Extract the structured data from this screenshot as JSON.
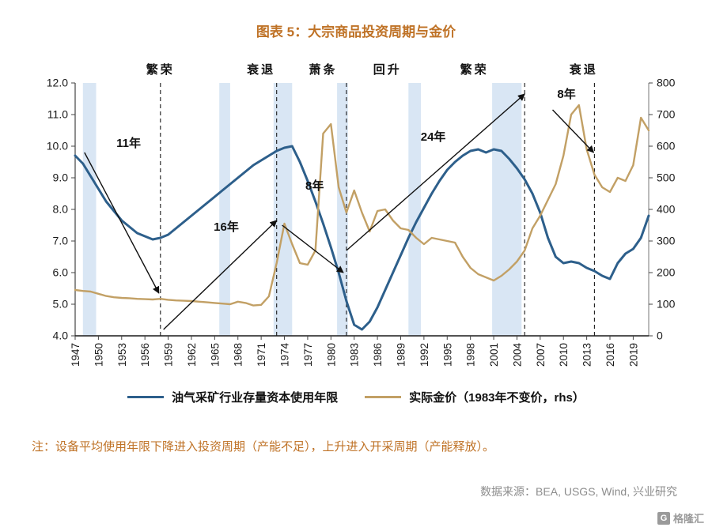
{
  "title": "图表 5：大宗商品投资周期与金价",
  "note": "注：设备平均使用年限下降进入投资周期（产能不足），上升进入开采周期（产能释放）。",
  "source": "数据来源：BEA, USGS, Wind, 兴业研究",
  "watermark": {
    "icon_letter": "G",
    "text": "格隆汇"
  },
  "colors": {
    "title": "#bf7226",
    "note": "#bf7226",
    "source": "#8c8c8c",
    "blue": "#2d5f8b",
    "gold": "#c2a065",
    "band": "#d9e6f4",
    "axis": "#444444",
    "annotation": "#111111"
  },
  "legend": [
    {
      "label": "油气采矿行业存量资本使用年限",
      "color_key": "blue"
    },
    {
      "label": "实际金价（1983年不变价，rhs）",
      "color_key": "gold"
    }
  ],
  "chart_data": {
    "type": "line",
    "title": "图表 5：大宗商品投资周期与金价",
    "x_axis": {
      "min": 1947,
      "max": 2021,
      "tick_years": [
        1947,
        1950,
        1953,
        1956,
        1959,
        1962,
        1965,
        1968,
        1971,
        1974,
        1977,
        1980,
        1983,
        1986,
        1989,
        1992,
        1995,
        1998,
        2001,
        2004,
        2007,
        2010,
        2013,
        2016,
        2019
      ]
    },
    "left_axis": {
      "min": 4,
      "max": 12,
      "tick_values": [
        12,
        11,
        10,
        9,
        8,
        7,
        6,
        5,
        4
      ],
      "tick_labels": [
        "12.0",
        "11.0",
        "10.0",
        "9.0",
        "8.0",
        "7.0",
        "6.0",
        "5.0",
        "4.0"
      ]
    },
    "right_axis": {
      "min": 0,
      "max": 800,
      "tick_values": [
        800,
        700,
        600,
        500,
        400,
        300,
        200,
        100,
        0
      ],
      "tick_labels": [
        "800",
        "700",
        "600",
        "500",
        "400",
        "300",
        "200",
        "100",
        "0"
      ]
    },
    "x_years": [
      1947,
      1948,
      1949,
      1950,
      1951,
      1952,
      1953,
      1954,
      1955,
      1956,
      1957,
      1958,
      1959,
      1960,
      1961,
      1962,
      1963,
      1964,
      1965,
      1966,
      1967,
      1968,
      1969,
      1970,
      1971,
      1972,
      1973,
      1974,
      1975,
      1976,
      1977,
      1978,
      1979,
      1980,
      1981,
      1982,
      1983,
      1984,
      1985,
      1986,
      1987,
      1988,
      1989,
      1990,
      1991,
      1992,
      1993,
      1994,
      1995,
      1996,
      1997,
      1998,
      1999,
      2000,
      2001,
      2002,
      2003,
      2004,
      2005,
      2006,
      2007,
      2008,
      2009,
      2010,
      2011,
      2012,
      2013,
      2014,
      2015,
      2016,
      2017,
      2018,
      2019,
      2020,
      2021
    ],
    "series": [
      {
        "name": "油气采矿行业存量资本使用年限",
        "axis": "left",
        "color_key": "blue",
        "values": [
          9.7,
          9.45,
          9.05,
          8.65,
          8.25,
          7.95,
          7.65,
          7.45,
          7.25,
          7.15,
          7.05,
          7.1,
          7.2,
          7.4,
          7.6,
          7.8,
          8.0,
          8.2,
          8.4,
          8.6,
          8.8,
          9.0,
          9.2,
          9.4,
          9.55,
          9.7,
          9.85,
          9.95,
          10.0,
          9.5,
          8.9,
          8.25,
          7.55,
          6.8,
          6.0,
          5.1,
          4.35,
          4.2,
          4.45,
          4.9,
          5.45,
          6.0,
          6.55,
          7.1,
          7.6,
          8.05,
          8.5,
          8.9,
          9.25,
          9.5,
          9.7,
          9.85,
          9.9,
          9.8,
          9.9,
          9.85,
          9.6,
          9.3,
          8.95,
          8.5,
          7.9,
          7.1,
          6.5,
          6.3,
          6.35,
          6.3,
          6.15,
          6.05,
          5.9,
          5.8,
          6.3,
          6.6,
          6.75,
          7.1,
          7.8
        ]
      },
      {
        "name": "实际金价（1983年不变价，rhs）",
        "axis": "right",
        "color_key": "gold",
        "values": [
          145,
          142,
          140,
          133,
          126,
          122,
          120,
          119,
          117,
          116,
          115,
          117,
          114,
          112,
          111,
          110,
          108,
          106,
          104,
          102,
          100,
          108,
          104,
          96,
          98,
          125,
          230,
          355,
          290,
          230,
          225,
          270,
          640,
          670,
          470,
          390,
          460,
          390,
          330,
          395,
          400,
          365,
          340,
          335,
          310,
          290,
          310,
          305,
          300,
          295,
          250,
          215,
          195,
          185,
          175,
          190,
          210,
          235,
          270,
          340,
          380,
          430,
          480,
          570,
          700,
          730,
          590,
          510,
          470,
          455,
          500,
          490,
          540,
          690,
          650
        ]
      }
    ],
    "bands": [
      [
        1948,
        1949.7
      ],
      [
        1965.6,
        1967
      ],
      [
        1972.6,
        1975
      ],
      [
        1980.8,
        1982.2
      ],
      [
        1990,
        1991.6
      ],
      [
        2000.8,
        2004.6
      ]
    ],
    "dashed_lines": [
      1958,
      1973,
      1982,
      2005,
      2014
    ],
    "phase_labels": [
      {
        "text": "繁荣",
        "year": 1958
      },
      {
        "text": "衰退",
        "year": 1971
      },
      {
        "text": "萧条",
        "year": 1979
      },
      {
        "text": "回升",
        "year": 1987.3
      },
      {
        "text": "繁荣",
        "year": 1998.5
      },
      {
        "text": "衰退",
        "year": 2012.6
      }
    ],
    "annotations": [
      {
        "label": "11年",
        "label_year": 1953.9,
        "label_value": 10.1,
        "from_year": 1948.2,
        "from_value": 9.8,
        "to_year": 1957.8,
        "to_value": 5.35
      },
      {
        "label": "16年",
        "label_year": 1966.5,
        "label_value": 7.45,
        "from_year": 1958.4,
        "from_value": 4.2,
        "to_year": 1973.0,
        "to_value": 7.65
      },
      {
        "label": "8年",
        "label_year": 1977.9,
        "label_value": 8.75,
        "from_year": 1973.7,
        "from_value": 7.5,
        "to_year": 1981.6,
        "to_value": 6.0
      },
      {
        "label": "24年",
        "label_year": 1993.2,
        "label_value": 10.3,
        "from_year": 1982.0,
        "from_value": 6.7,
        "to_year": 2005.0,
        "to_value": 11.65
      },
      {
        "label": "8年",
        "label_year": 2010.4,
        "label_value": 11.65,
        "from_year": 2008.6,
        "from_value": 11.15,
        "to_year": 2013.9,
        "to_value": 9.8
      }
    ]
  }
}
